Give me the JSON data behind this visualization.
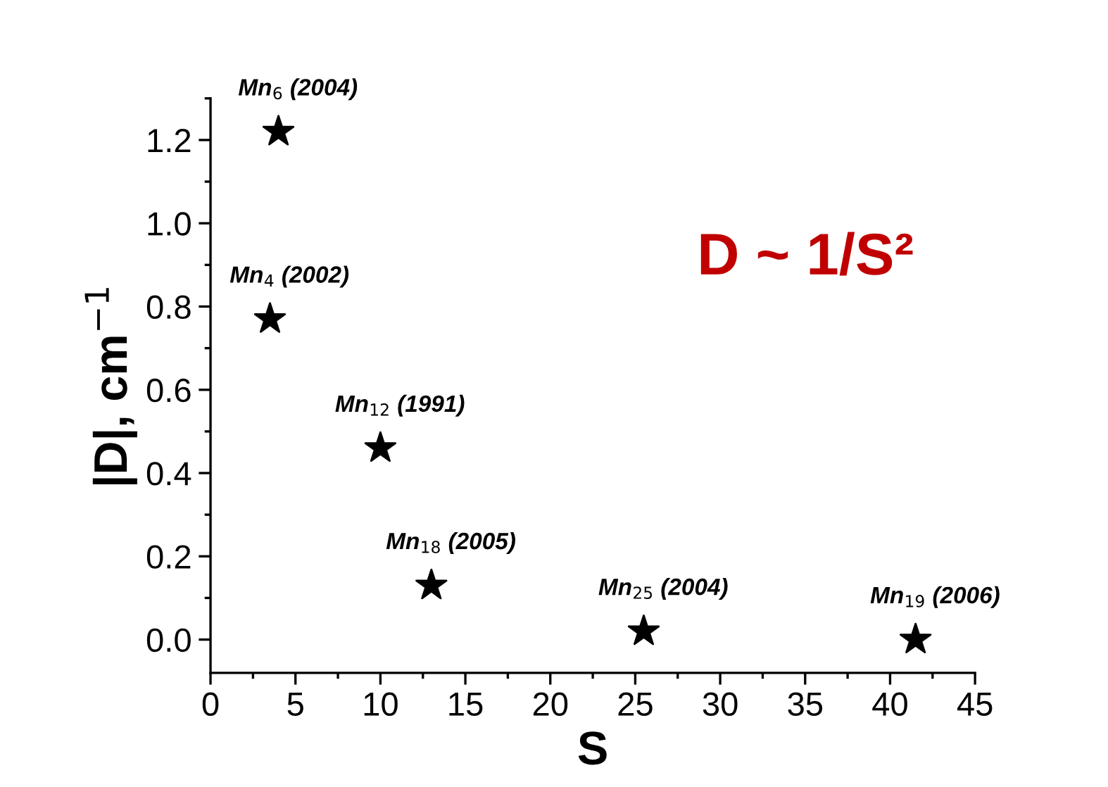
{
  "chart_data": {
    "type": "scatter",
    "xlabel": "S",
    "ylabel": "|D|, cm$^{−1}$",
    "x": [
      4.0,
      3.5,
      10.0,
      13.0,
      25.5,
      41.5
    ],
    "values": [
      1.22,
      0.77,
      0.46,
      0.13,
      0.02,
      0.0
    ],
    "color": "#000000",
    "marker": "star",
    "xlim": [
      0,
      45
    ],
    "xticks": [
      0,
      5,
      10,
      15,
      20,
      25,
      30,
      35,
      40,
      45
    ],
    "ylim": [
      -0.08,
      1.3
    ],
    "yticks": [
      {
        "value": 0,
        "label": "0.0"
      },
      {
        "value": 0.2,
        "label": "0.2"
      },
      {
        "value": 0.4,
        "label": "0.4"
      },
      {
        "value": 0.6,
        "label": "0.6"
      },
      {
        "value": 0.8,
        "label": "0.8"
      },
      {
        "value": 1.0,
        "label": "1.0"
      },
      {
        "value": 1.2,
        "label": "1.2"
      }
    ],
    "grid": false,
    "annotations": [
      {
        "text": "Mn$_{6}$ (2004)",
        "x": 4.0,
        "y": 1.22
      },
      {
        "text": "Mn$_{4}$ (2002)",
        "x": 3.5,
        "y": 0.77
      },
      {
        "text": "Mn$_{12}$ (1991)",
        "x": 10.0,
        "y": 0.46
      },
      {
        "text": "Mn$_{18}$ (2005)",
        "x": 13.0,
        "y": 0.13
      },
      {
        "text": "Mn$_{25}$ (2004)",
        "x": 25.5,
        "y": 0.02
      },
      {
        "text": "Mn$_{19}$ (2006)",
        "x": 41.5,
        "y": 0.0
      },
      "D ~ 1/S²"
    ]
  }
}
